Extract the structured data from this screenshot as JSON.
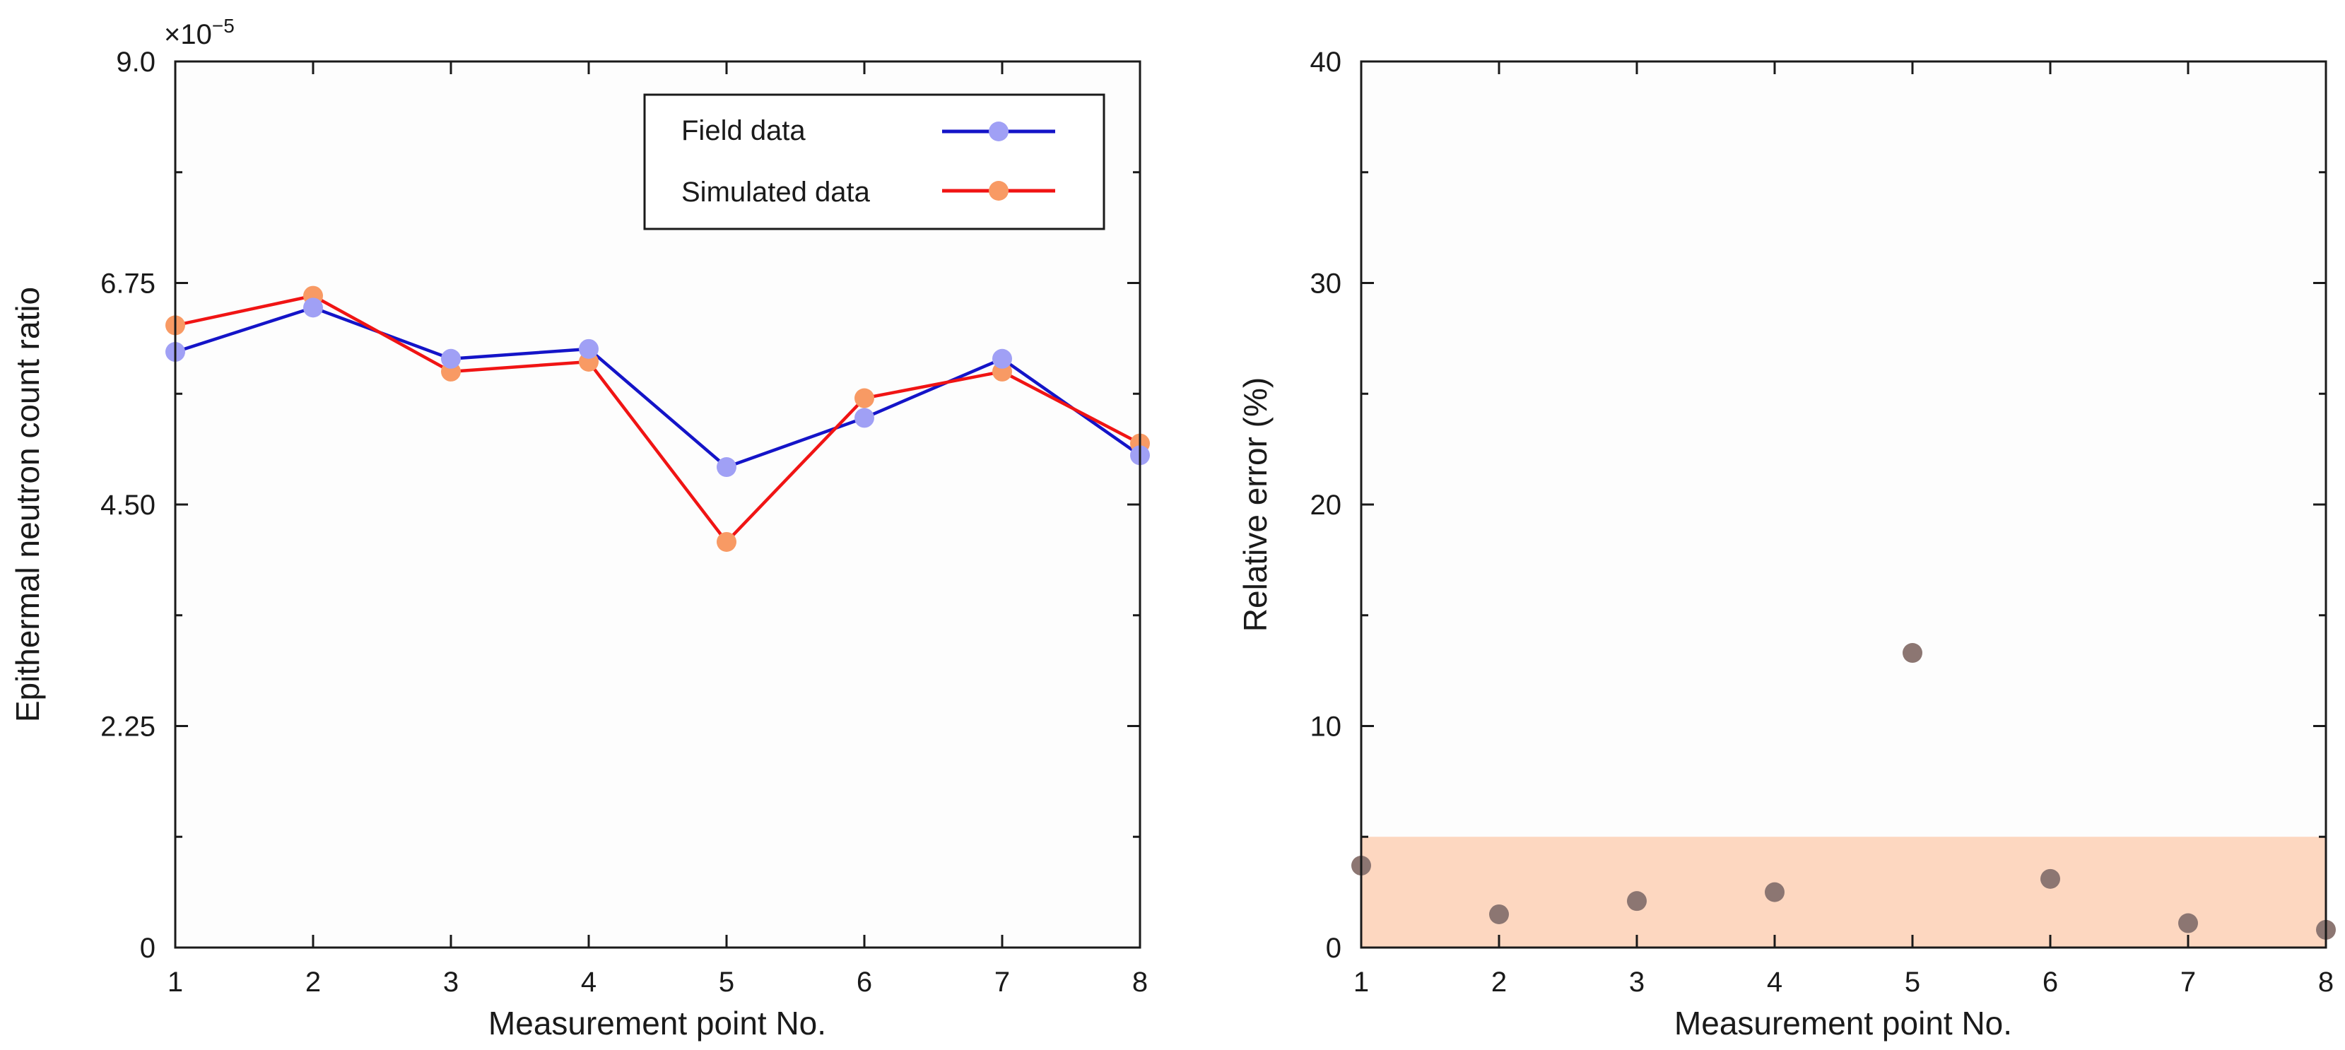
{
  "chart_data": [
    {
      "type": "line",
      "title": "",
      "xlabel": "Measurement point No.",
      "ylabel": "Epithermal neutron count ratio",
      "y_multiplier": "×10",
      "y_exponent": "−5",
      "xlim": [
        1,
        8
      ],
      "ylim": [
        0,
        9
      ],
      "xticks": [
        1,
        2,
        3,
        4,
        5,
        6,
        7,
        8
      ],
      "yticks": [
        0,
        2.25,
        4.5,
        6.75,
        9.0
      ],
      "ytick_labels": [
        "0",
        "2.25",
        "4.50",
        "6.75",
        "9.0"
      ],
      "yminor": [
        1.125,
        3.375,
        5.625,
        7.875
      ],
      "legend_position": "top-right",
      "series": [
        {
          "name": "Field data",
          "line_color": "#1414c8",
          "marker_color": "#a0a0f5",
          "x": [
            1,
            2,
            3,
            4,
            5,
            6,
            7,
            8
          ],
          "values": [
            6.05,
            6.5,
            5.98,
            6.08,
            4.88,
            5.38,
            5.98,
            5.0
          ]
        },
        {
          "name": "Simulated data",
          "line_color": "#f01414",
          "marker_color": "#f89a64",
          "x": [
            1,
            2,
            3,
            4,
            5,
            6,
            7,
            8
          ],
          "values": [
            6.32,
            6.62,
            5.85,
            5.95,
            4.12,
            5.58,
            5.85,
            5.12
          ]
        }
      ]
    },
    {
      "type": "scatter",
      "title": "",
      "xlabel": "Measurement point No.",
      "ylabel": "Relative error (%)",
      "xlim": [
        1,
        8
      ],
      "ylim": [
        0,
        40
      ],
      "xticks": [
        1,
        2,
        3,
        4,
        5,
        6,
        7,
        8
      ],
      "yticks": [
        0,
        10,
        20,
        30,
        40
      ],
      "ytick_labels": [
        "0",
        "10",
        "20",
        "30",
        "40"
      ],
      "yminor": [
        5,
        15,
        25,
        35
      ],
      "band": {
        "y0": 0,
        "y1": 5,
        "color": "#fdd7c0"
      },
      "marker_color": "#8c7672",
      "x": [
        1,
        2,
        3,
        4,
        5,
        6,
        7,
        8
      ],
      "values": [
        3.7,
        1.5,
        2.1,
        2.5,
        13.3,
        3.1,
        1.1,
        0.8
      ]
    }
  ]
}
